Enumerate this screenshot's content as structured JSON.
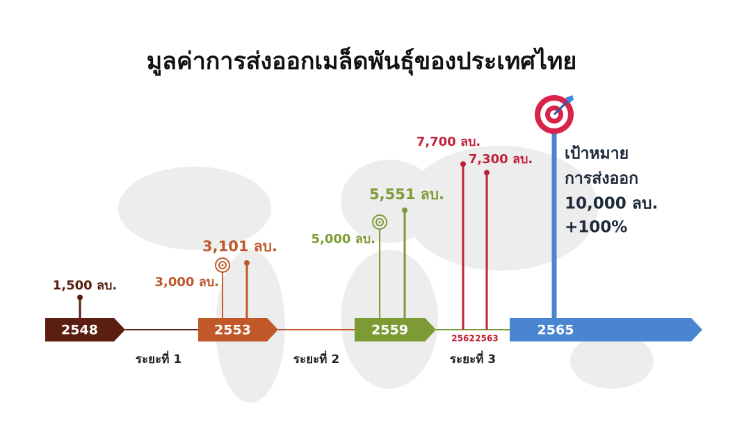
{
  "chart_data": {
    "type": "lollipop",
    "title": "มูลค่าการส่งออกเมล็ดพันธุ์ของประเทศไทย",
    "stages": [
      {
        "label": "2548",
        "color": "#5b1f12"
      },
      {
        "label": "2553",
        "color": "#c0582a"
      },
      {
        "label": "2559",
        "color": "#7d9b35"
      },
      {
        "label": "2565",
        "color": "#4a86d0"
      }
    ],
    "periods": [
      "ระยะที่ 1",
      "ระยะที่ 2",
      "ระยะที่ 3"
    ],
    "points": {
      "values": [
        1500,
        3000,
        3101,
        5000,
        5551,
        7700,
        7300
      ],
      "value_labels": [
        "1,500 ลบ.",
        "3,000 ลบ.",
        "3,101 ลบ.",
        "5,000 ลบ.",
        "5,551 ลบ.",
        "7,700 ลบ.",
        "7,300 ลบ."
      ],
      "years": [
        null,
        null,
        null,
        null,
        null,
        "2562",
        "2563"
      ],
      "colors": [
        "#5b1f12",
        "#c0582a",
        "#c0582a",
        "#7d9b35",
        "#7d9b35",
        "#c0213a",
        "#c0213a"
      ],
      "targets": [
        false,
        true,
        false,
        true,
        false,
        false,
        false
      ]
    },
    "goal": {
      "lines": [
        "เป้าหมาย",
        "การส่งออก"
      ],
      "value": 10000,
      "value_label": "10,000 ลบ.",
      "change": {
        "value": 100,
        "label": "+100%"
      },
      "color": "#4a86d0"
    }
  }
}
